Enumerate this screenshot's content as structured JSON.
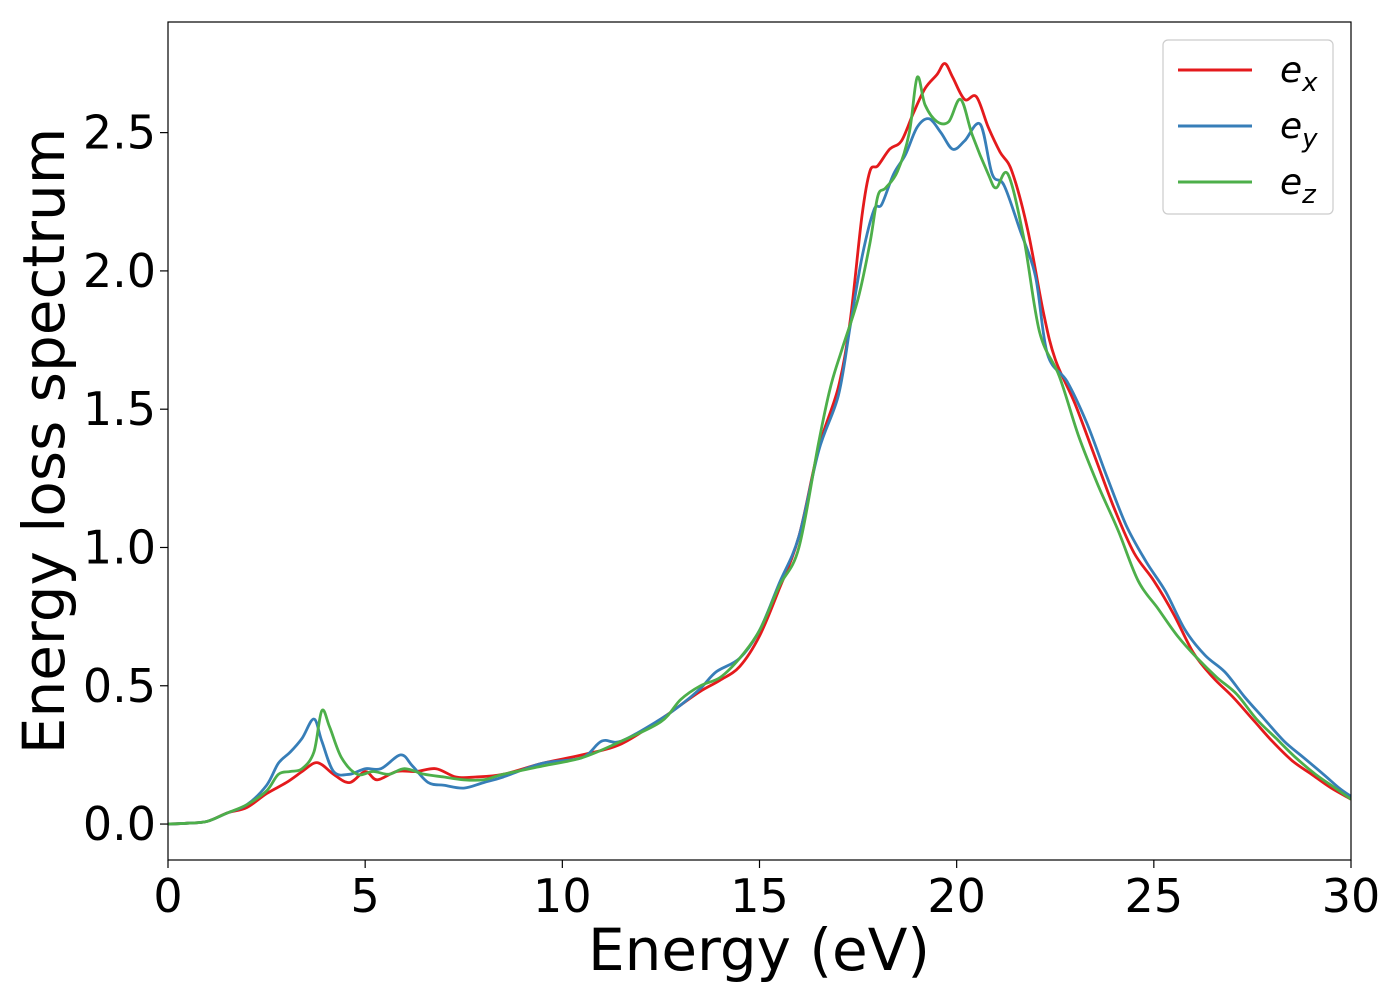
{
  "chart_data": {
    "type": "line",
    "title": "",
    "xlabel": "Energy (eV)",
    "ylabel": "Energy loss spectrum",
    "xlim": [
      0,
      30
    ],
    "ylim": [
      -0.13,
      2.9
    ],
    "xticks": [
      0,
      5,
      10,
      15,
      20,
      25,
      30
    ],
    "xtick_labels": [
      "0",
      "5",
      "10",
      "15",
      "20",
      "25",
      "30"
    ],
    "yticks": [
      0.0,
      0.5,
      1.0,
      1.5,
      2.0,
      2.5
    ],
    "ytick_labels": [
      "0.0",
      "0.5",
      "1.0",
      "1.5",
      "2.0",
      "2.5"
    ],
    "grid": false,
    "legend_position": "top-right",
    "series": [
      {
        "name": "e_x",
        "label_main": "e",
        "label_sub": "x",
        "color": "#e41a1c",
        "points": [
          [
            0,
            0
          ],
          [
            0.5,
            0.003
          ],
          [
            1.0,
            0.01
          ],
          [
            1.5,
            0.04
          ],
          [
            2.0,
            0.06
          ],
          [
            2.5,
            0.11
          ],
          [
            3.0,
            0.15
          ],
          [
            3.4,
            0.19
          ],
          [
            3.7,
            0.22
          ],
          [
            3.9,
            0.215
          ],
          [
            4.2,
            0.18
          ],
          [
            4.6,
            0.15
          ],
          [
            5.0,
            0.19
          ],
          [
            5.3,
            0.16
          ],
          [
            5.8,
            0.19
          ],
          [
            6.3,
            0.19
          ],
          [
            6.8,
            0.2
          ],
          [
            7.3,
            0.17
          ],
          [
            7.8,
            0.17
          ],
          [
            8.5,
            0.18
          ],
          [
            9.5,
            0.22
          ],
          [
            10.5,
            0.25
          ],
          [
            11.5,
            0.29
          ],
          [
            12.5,
            0.38
          ],
          [
            13.0,
            0.43
          ],
          [
            13.5,
            0.48
          ],
          [
            14.0,
            0.52
          ],
          [
            14.5,
            0.57
          ],
          [
            15.0,
            0.68
          ],
          [
            15.5,
            0.85
          ],
          [
            16.0,
            1.04
          ],
          [
            16.5,
            1.36
          ],
          [
            17.0,
            1.58
          ],
          [
            17.3,
            1.82
          ],
          [
            17.6,
            2.2
          ],
          [
            17.8,
            2.36
          ],
          [
            18.0,
            2.38
          ],
          [
            18.3,
            2.44
          ],
          [
            18.6,
            2.47
          ],
          [
            18.9,
            2.57
          ],
          [
            19.2,
            2.66
          ],
          [
            19.5,
            2.71
          ],
          [
            19.7,
            2.75
          ],
          [
            19.9,
            2.7
          ],
          [
            20.2,
            2.62
          ],
          [
            20.5,
            2.63
          ],
          [
            20.8,
            2.52
          ],
          [
            21.1,
            2.43
          ],
          [
            21.4,
            2.36
          ],
          [
            21.8,
            2.15
          ],
          [
            22.2,
            1.85
          ],
          [
            22.5,
            1.68
          ],
          [
            23.0,
            1.52
          ],
          [
            23.5,
            1.33
          ],
          [
            24.0,
            1.14
          ],
          [
            24.5,
            0.98
          ],
          [
            25.0,
            0.88
          ],
          [
            25.5,
            0.76
          ],
          [
            26.0,
            0.62
          ],
          [
            26.5,
            0.53
          ],
          [
            27.0,
            0.46
          ],
          [
            27.5,
            0.38
          ],
          [
            28.0,
            0.3
          ],
          [
            28.5,
            0.23
          ],
          [
            29.0,
            0.18
          ],
          [
            29.5,
            0.13
          ],
          [
            30.0,
            0.09
          ]
        ]
      },
      {
        "name": "e_y",
        "label_main": "e",
        "label_sub": "y",
        "color": "#377eb8",
        "points": [
          [
            0,
            0
          ],
          [
            0.5,
            0.003
          ],
          [
            1.0,
            0.01
          ],
          [
            1.5,
            0.04
          ],
          [
            2.0,
            0.07
          ],
          [
            2.5,
            0.14
          ],
          [
            2.8,
            0.22
          ],
          [
            3.1,
            0.26
          ],
          [
            3.4,
            0.31
          ],
          [
            3.7,
            0.38
          ],
          [
            3.9,
            0.3
          ],
          [
            4.2,
            0.19
          ],
          [
            4.6,
            0.18
          ],
          [
            5.0,
            0.2
          ],
          [
            5.4,
            0.2
          ],
          [
            5.9,
            0.25
          ],
          [
            6.2,
            0.21
          ],
          [
            6.6,
            0.15
          ],
          [
            7.0,
            0.14
          ],
          [
            7.5,
            0.13
          ],
          [
            8.0,
            0.15
          ],
          [
            8.5,
            0.17
          ],
          [
            9.5,
            0.22
          ],
          [
            10.5,
            0.24
          ],
          [
            11.0,
            0.3
          ],
          [
            11.5,
            0.3
          ],
          [
            12.5,
            0.38
          ],
          [
            13.0,
            0.43
          ],
          [
            13.5,
            0.49
          ],
          [
            13.9,
            0.55
          ],
          [
            14.5,
            0.6
          ],
          [
            15.0,
            0.7
          ],
          [
            15.5,
            0.87
          ],
          [
            16.0,
            1.04
          ],
          [
            16.5,
            1.35
          ],
          [
            17.0,
            1.55
          ],
          [
            17.3,
            1.8
          ],
          [
            17.6,
            2.05
          ],
          [
            17.9,
            2.22
          ],
          [
            18.1,
            2.24
          ],
          [
            18.4,
            2.35
          ],
          [
            18.7,
            2.42
          ],
          [
            19.0,
            2.52
          ],
          [
            19.3,
            2.55
          ],
          [
            19.6,
            2.5
          ],
          [
            19.9,
            2.44
          ],
          [
            20.2,
            2.47
          ],
          [
            20.6,
            2.53
          ],
          [
            20.9,
            2.35
          ],
          [
            21.2,
            2.31
          ],
          [
            21.6,
            2.15
          ],
          [
            22.0,
            1.98
          ],
          [
            22.3,
            1.7
          ],
          [
            22.8,
            1.6
          ],
          [
            23.3,
            1.45
          ],
          [
            23.8,
            1.26
          ],
          [
            24.3,
            1.08
          ],
          [
            24.8,
            0.95
          ],
          [
            25.3,
            0.84
          ],
          [
            25.8,
            0.7
          ],
          [
            26.3,
            0.61
          ],
          [
            26.8,
            0.55
          ],
          [
            27.3,
            0.46
          ],
          [
            27.8,
            0.38
          ],
          [
            28.3,
            0.3
          ],
          [
            28.8,
            0.24
          ],
          [
            29.3,
            0.18
          ],
          [
            29.7,
            0.13
          ],
          [
            30.0,
            0.1
          ]
        ]
      },
      {
        "name": "e_z",
        "label_main": "e",
        "label_sub": "z",
        "color": "#4daf4a",
        "points": [
          [
            0,
            0
          ],
          [
            0.5,
            0.003
          ],
          [
            1.0,
            0.01
          ],
          [
            1.5,
            0.04
          ],
          [
            2.0,
            0.07
          ],
          [
            2.5,
            0.12
          ],
          [
            2.8,
            0.18
          ],
          [
            3.1,
            0.19
          ],
          [
            3.4,
            0.2
          ],
          [
            3.7,
            0.26
          ],
          [
            3.9,
            0.41
          ],
          [
            4.1,
            0.35
          ],
          [
            4.4,
            0.24
          ],
          [
            4.8,
            0.18
          ],
          [
            5.2,
            0.19
          ],
          [
            5.6,
            0.18
          ],
          [
            6.0,
            0.2
          ],
          [
            6.5,
            0.18
          ],
          [
            7.0,
            0.17
          ],
          [
            7.5,
            0.16
          ],
          [
            8.0,
            0.16
          ],
          [
            8.5,
            0.18
          ],
          [
            9.5,
            0.21
          ],
          [
            10.5,
            0.24
          ],
          [
            11.5,
            0.3
          ],
          [
            12.5,
            0.37
          ],
          [
            13.0,
            0.45
          ],
          [
            13.5,
            0.5
          ],
          [
            14.0,
            0.53
          ],
          [
            14.5,
            0.6
          ],
          [
            15.0,
            0.7
          ],
          [
            15.5,
            0.86
          ],
          [
            16.0,
            1.0
          ],
          [
            16.5,
            1.38
          ],
          [
            16.8,
            1.58
          ],
          [
            17.1,
            1.72
          ],
          [
            17.5,
            1.9
          ],
          [
            17.8,
            2.1
          ],
          [
            18.0,
            2.27
          ],
          [
            18.2,
            2.3
          ],
          [
            18.5,
            2.36
          ],
          [
            18.8,
            2.5
          ],
          [
            19.0,
            2.7
          ],
          [
            19.2,
            2.6
          ],
          [
            19.5,
            2.54
          ],
          [
            19.8,
            2.54
          ],
          [
            20.1,
            2.62
          ],
          [
            20.4,
            2.49
          ],
          [
            20.8,
            2.35
          ],
          [
            21.0,
            2.3
          ],
          [
            21.3,
            2.35
          ],
          [
            21.7,
            2.12
          ],
          [
            22.1,
            1.78
          ],
          [
            22.6,
            1.62
          ],
          [
            23.1,
            1.4
          ],
          [
            23.6,
            1.22
          ],
          [
            24.1,
            1.06
          ],
          [
            24.6,
            0.88
          ],
          [
            25.1,
            0.78
          ],
          [
            25.6,
            0.68
          ],
          [
            26.1,
            0.6
          ],
          [
            26.6,
            0.53
          ],
          [
            27.1,
            0.47
          ],
          [
            27.6,
            0.38
          ],
          [
            28.1,
            0.31
          ],
          [
            28.6,
            0.24
          ],
          [
            29.1,
            0.18
          ],
          [
            29.6,
            0.13
          ],
          [
            30.0,
            0.09
          ]
        ]
      }
    ]
  }
}
